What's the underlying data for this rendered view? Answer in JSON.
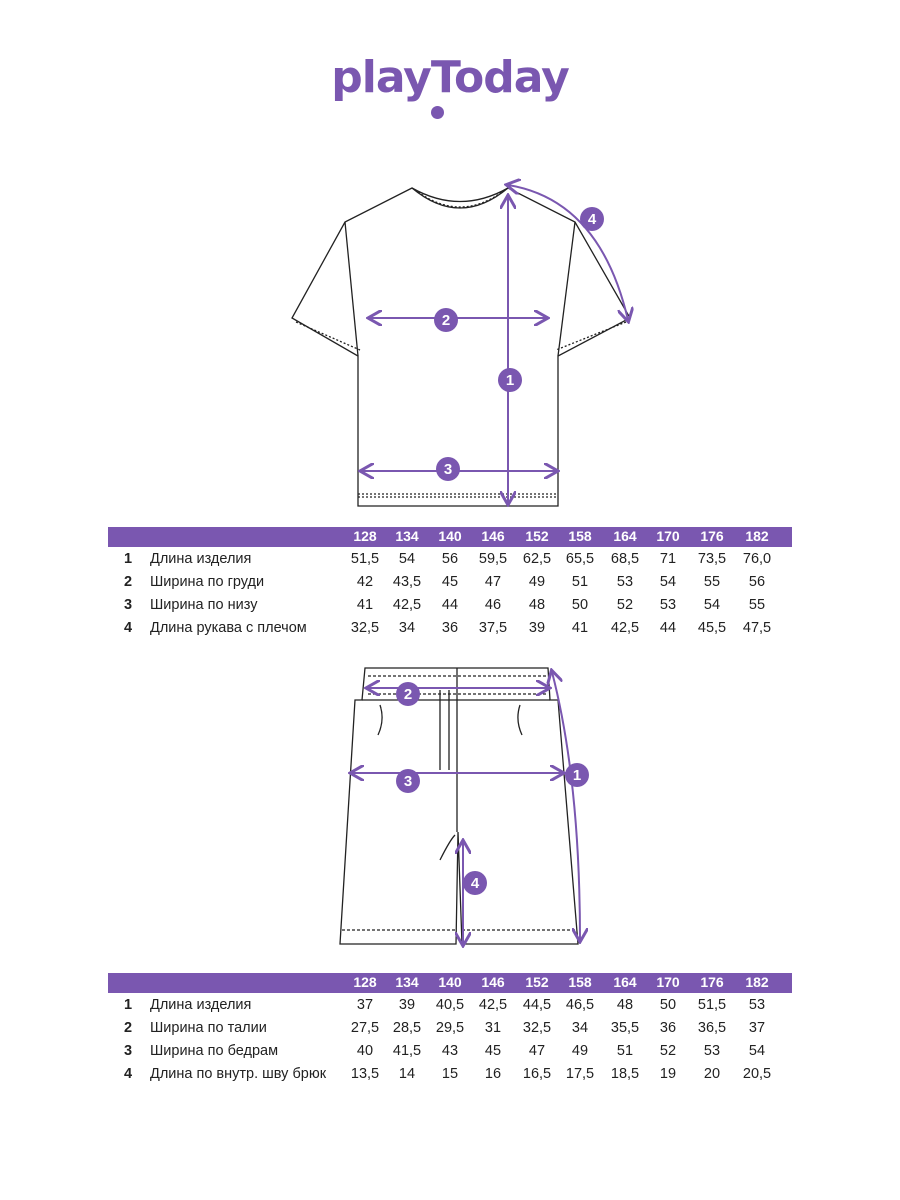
{
  "brand": {
    "logo_text": "playToday",
    "accent": "#7a57b0"
  },
  "sizes": [
    "128",
    "134",
    "140",
    "146",
    "152",
    "158",
    "164",
    "170",
    "176",
    "182"
  ],
  "tshirt": {
    "markers": [
      "1",
      "2",
      "3",
      "4"
    ],
    "rows": [
      {
        "num": "1",
        "label": "Длина изделия",
        "values": [
          "51,5",
          "54",
          "56",
          "59,5",
          "62,5",
          "65,5",
          "68,5",
          "71",
          "73,5",
          "76,0"
        ]
      },
      {
        "num": "2",
        "label": "Ширина по груди",
        "values": [
          "42",
          "43,5",
          "45",
          "47",
          "49",
          "51",
          "53",
          "54",
          "55",
          "56"
        ]
      },
      {
        "num": "3",
        "label": "Ширина по низу",
        "values": [
          "41",
          "42,5",
          "44",
          "46",
          "48",
          "50",
          "52",
          "53",
          "54",
          "55"
        ]
      },
      {
        "num": "4",
        "label": "Длина рукава с плечом",
        "values": [
          "32,5",
          "34",
          "36",
          "37,5",
          "39",
          "41",
          "42,5",
          "44",
          "45,5",
          "47,5"
        ]
      }
    ]
  },
  "shorts": {
    "markers": [
      "1",
      "2",
      "3",
      "4"
    ],
    "rows": [
      {
        "num": "1",
        "label": "Длина изделия",
        "values": [
          "37",
          "39",
          "40,5",
          "42,5",
          "44,5",
          "46,5",
          "48",
          "50",
          "51,5",
          "53"
        ]
      },
      {
        "num": "2",
        "label": "Ширина по талии",
        "values": [
          "27,5",
          "28,5",
          "29,5",
          "31",
          "32,5",
          "34",
          "35,5",
          "36",
          "36,5",
          "37"
        ]
      },
      {
        "num": "3",
        "label": "Ширина по бедрам",
        "values": [
          "40",
          "41,5",
          "43",
          "45",
          "47",
          "49",
          "51",
          "52",
          "53",
          "54"
        ]
      },
      {
        "num": "4",
        "label": "Длина по внутр. шву брюк",
        "values": [
          "13,5",
          "14",
          "15",
          "16",
          "16,5",
          "17,5",
          "18,5",
          "19",
          "20",
          "20,5"
        ]
      }
    ]
  }
}
